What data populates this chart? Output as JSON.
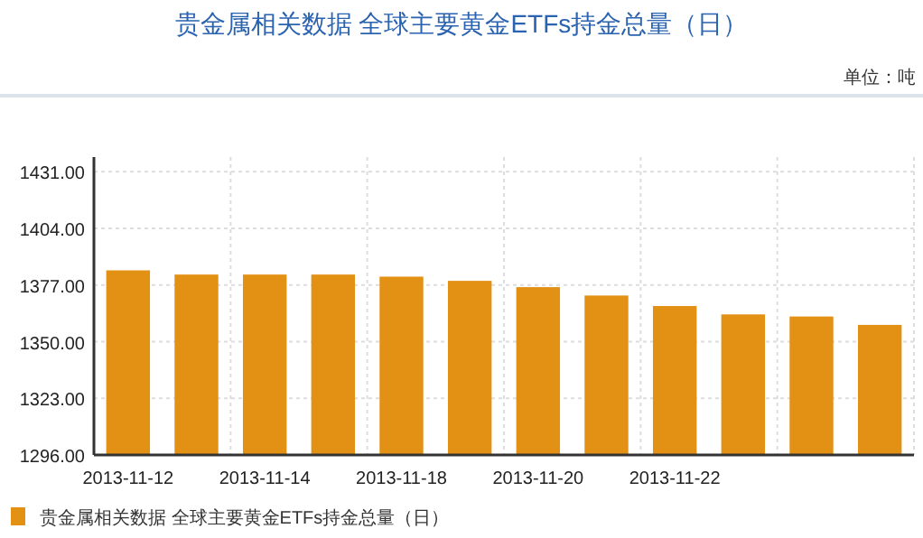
{
  "chart_data": {
    "type": "bar",
    "title": "贵金属相关数据 全球主要黄金ETFs持金总量（日）",
    "annotations": [
      "单位：吨"
    ],
    "categories": [
      "2013-11-12",
      null,
      "2013-11-14",
      null,
      "2013-11-18",
      null,
      "2013-11-20",
      null,
      "2013-11-22",
      null,
      null,
      null
    ],
    "series": [
      {
        "name": "贵金属相关数据 全球主要黄金ETFs持金总量（日）",
        "color": "#e29115",
        "values": [
          1384,
          1382,
          1382,
          1382,
          1381,
          1379,
          1376,
          1372,
          1367,
          1363,
          1362,
          1358
        ]
      }
    ],
    "ylim": [
      1296,
      1438
    ],
    "yticks": [
      {
        "value": 1296,
        "label": "1296.00"
      },
      {
        "value": 1323,
        "label": "1323.00"
      },
      {
        "value": 1350,
        "label": "1350.00"
      },
      {
        "value": 1377,
        "label": "1377.00"
      },
      {
        "value": 1404,
        "label": "1404.00"
      },
      {
        "value": 1431,
        "label": "1431.00"
      }
    ],
    "grid": true,
    "legend": "bottom"
  }
}
